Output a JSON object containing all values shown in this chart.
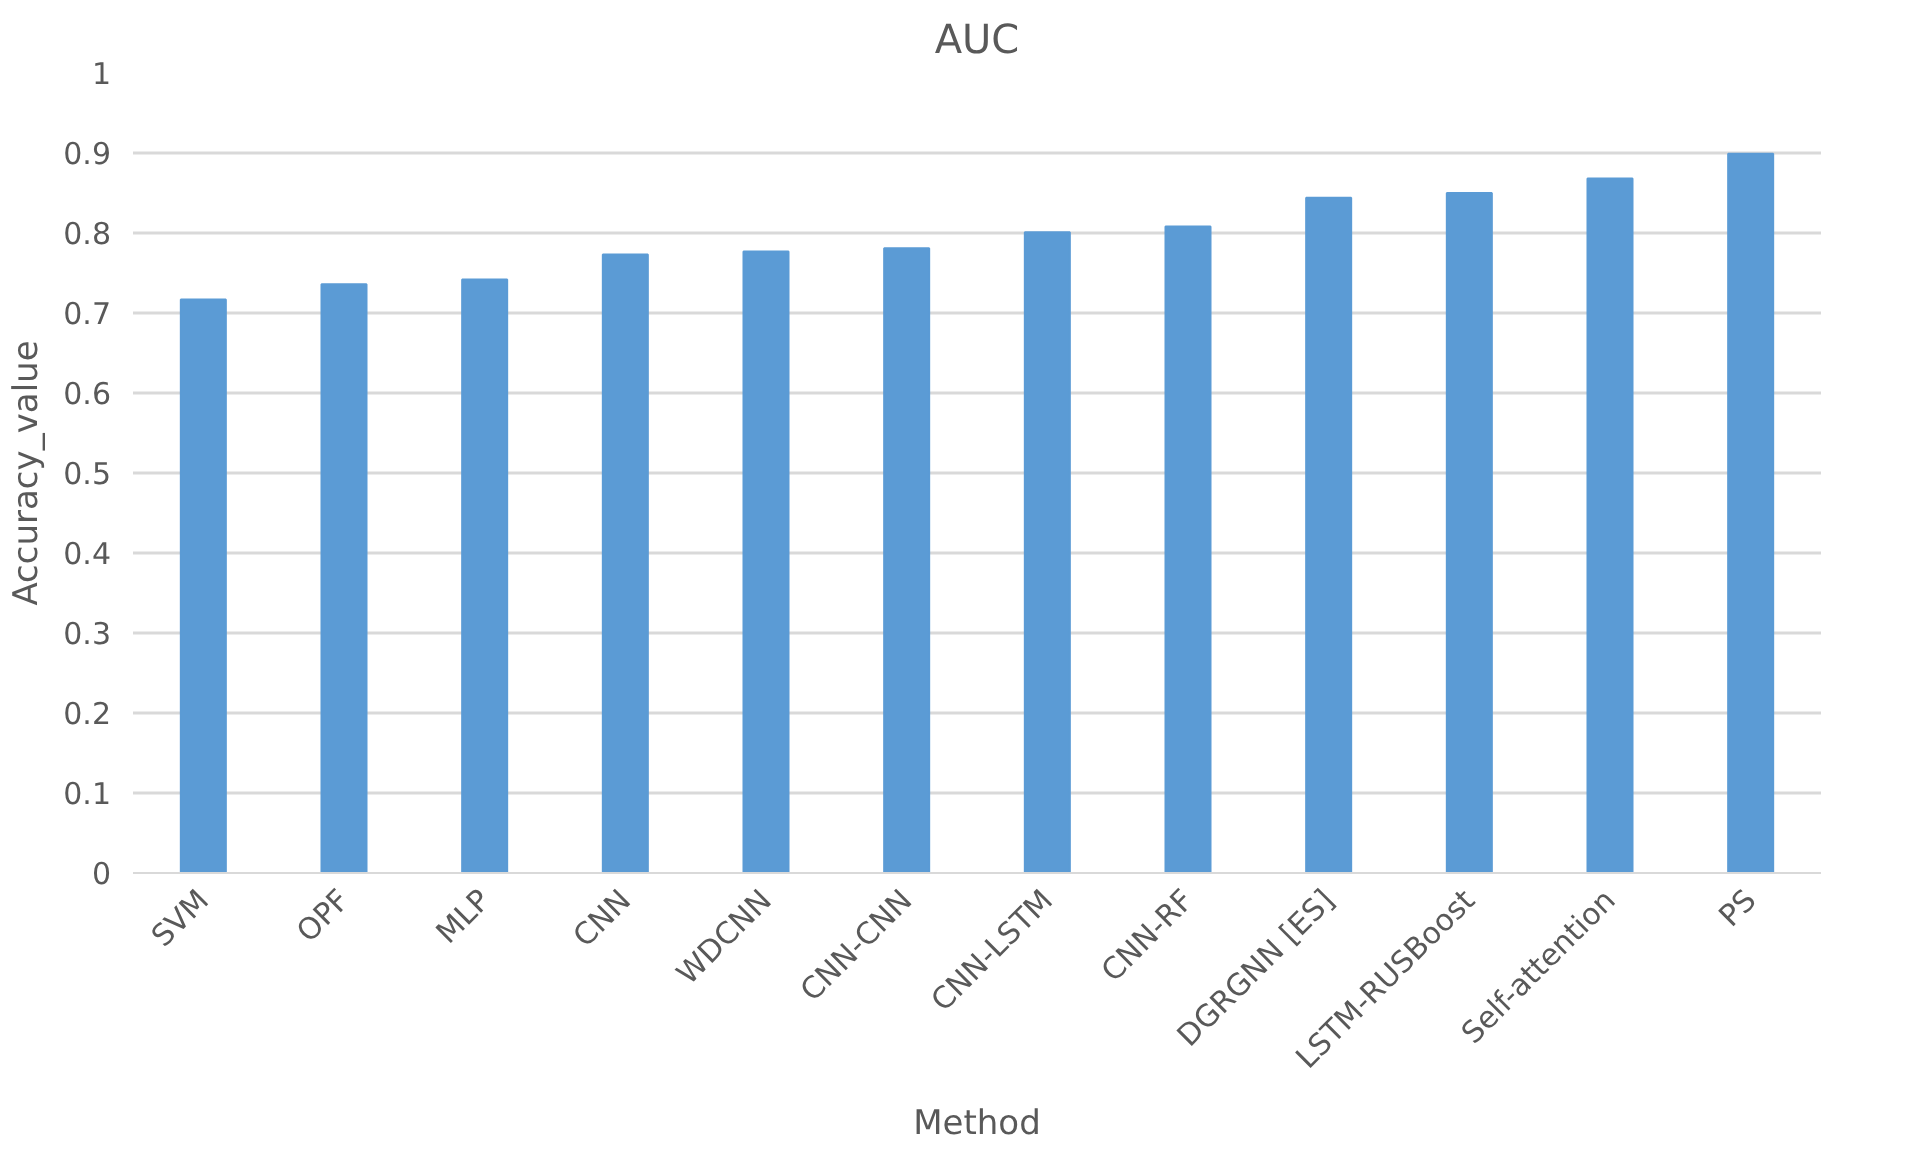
{
  "chart_data": {
    "type": "bar",
    "title": "AUC",
    "xlabel": "Method",
    "ylabel": "Accuracy_value",
    "categories": [
      "SVM",
      "OPF",
      "MLP",
      "CNN",
      "WDCNN",
      "CNN-CNN",
      "CNN-LSTM",
      "CNN-RF",
      "DGRGNN [ES]",
      "LSTM-RUSBoost",
      "Self-attention",
      "PS"
    ],
    "values": [
      0.717,
      0.736,
      0.742,
      0.773,
      0.777,
      0.781,
      0.801,
      0.808,
      0.844,
      0.85,
      0.868,
      0.899
    ],
    "color": "#5b9bd5",
    "ylim": [
      0,
      1
    ],
    "yticks": [
      0,
      0.1,
      0.2,
      0.3,
      0.4,
      0.5,
      0.6,
      0.7,
      0.8,
      0.9,
      1
    ],
    "grid": "y"
  }
}
